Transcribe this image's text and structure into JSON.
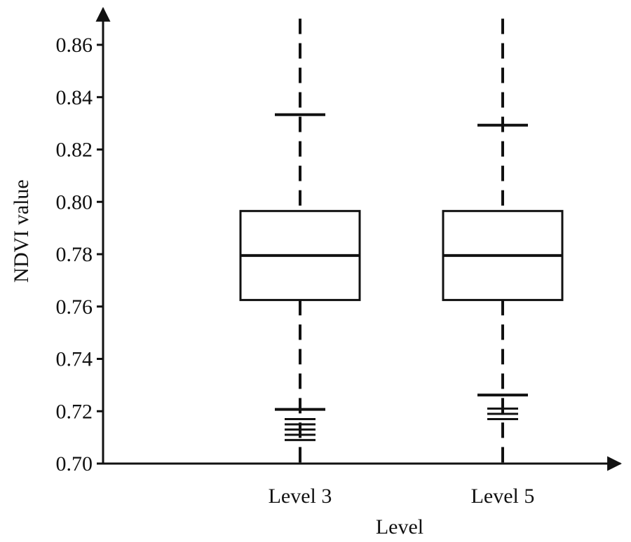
{
  "chart_data": {
    "type": "box",
    "xlabel": "Level",
    "ylabel": "NDVI value",
    "ylim": [
      0.7,
      0.875
    ],
    "yticks": [
      "0.70",
      "0.72",
      "0.74",
      "0.76",
      "0.78",
      "0.80",
      "0.82",
      "0.84",
      "0.86"
    ],
    "categories": [
      "Level 3",
      "Level 5"
    ],
    "boxes": [
      {
        "category": "Level 3",
        "q1": 0.7625,
        "median": 0.7795,
        "q3": 0.7965,
        "whisker_low": 0.7207,
        "whisker_high": 0.8333,
        "outliers": [
          0.717,
          0.715,
          0.713,
          0.711,
          0.709
        ],
        "range_low": 0.7,
        "range_high": 0.87
      },
      {
        "category": "Level 5",
        "q1": 0.7625,
        "median": 0.7795,
        "q3": 0.7965,
        "whisker_low": 0.7262,
        "whisker_high": 0.8293,
        "outliers": [
          0.721,
          0.719,
          0.717
        ],
        "range_low": 0.7,
        "range_high": 0.87
      }
    ],
    "grid": false,
    "colors": {
      "stroke": "#111111",
      "background": "#ffffff"
    }
  }
}
